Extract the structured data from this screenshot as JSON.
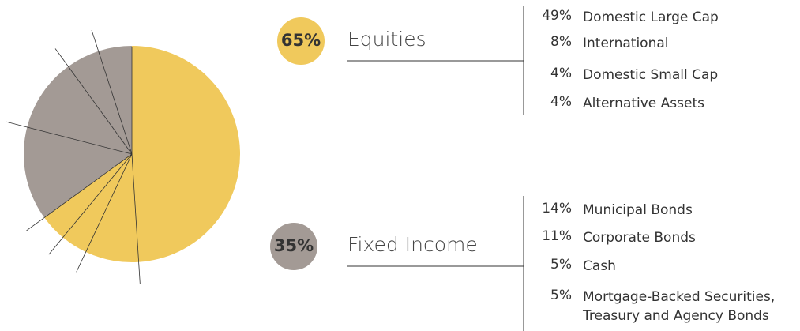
{
  "chart_data": {
    "type": "pie",
    "series": [
      {
        "name": "Equities",
        "color": "#f0c95c",
        "total": 65,
        "total_label": "65%",
        "categories": [
          "Domestic Large Cap",
          "International",
          "Domestic Small Cap",
          "Alternative Assets"
        ],
        "values": [
          49,
          8,
          4,
          4
        ],
        "value_labels": [
          "49%",
          "8%",
          "4%",
          "4%"
        ]
      },
      {
        "name": "Fixed Income",
        "color": "#a39a95",
        "total": 35,
        "total_label": "35%",
        "categories": [
          "Municipal Bonds",
          "Corporate Bonds",
          "Cash",
          "Mortgage-Backed Securities,\nTreasury and Agency Bonds"
        ],
        "values": [
          14,
          11,
          5,
          5
        ],
        "value_labels": [
          "14%",
          "11%",
          "5%",
          "5%"
        ]
      }
    ]
  }
}
